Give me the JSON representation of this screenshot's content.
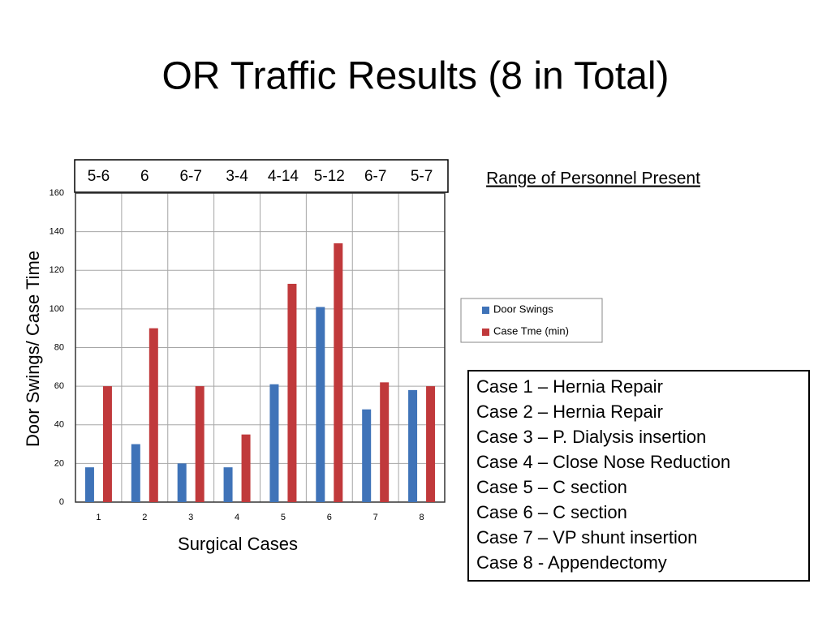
{
  "slide": {
    "title": "OR Traffic Results (8 in Total)",
    "personnel_label": "Range of Personnel Present",
    "personnel_ranges": [
      "5-6",
      "6",
      "6-7",
      "3-4",
      "4-14",
      "5-12",
      "6-7",
      "5-7"
    ],
    "cases": [
      "Case 1 – Hernia Repair",
      "Case 2 – Hernia Repair",
      "Case 3 – P. Dialysis insertion",
      "Case 4 – Close Nose Reduction",
      "Case 5 – C section",
      "Case 6 – C section",
      "Case 7 – VP shunt insertion",
      "Case 8 - Appendectomy"
    ]
  },
  "chart_data": {
    "type": "bar",
    "x_label": "Surgical Cases",
    "y_label": "Door Swings/ Case Time",
    "categories": [
      "1",
      "2",
      "3",
      "4",
      "5",
      "6",
      "7",
      "8"
    ],
    "series": [
      {
        "name": "Door Swings",
        "color": "#3f73b8",
        "values": [
          18,
          30,
          20,
          18,
          61,
          101,
          48,
          58
        ]
      },
      {
        "name": "Case Tme (min)",
        "color": "#c0393b",
        "values": [
          60,
          90,
          60,
          35,
          113,
          134,
          62,
          60
        ]
      }
    ],
    "ylim": [
      0,
      160
    ],
    "yticks": [
      0,
      20,
      40,
      60,
      80,
      100,
      120,
      140,
      160
    ],
    "grid": true
  }
}
